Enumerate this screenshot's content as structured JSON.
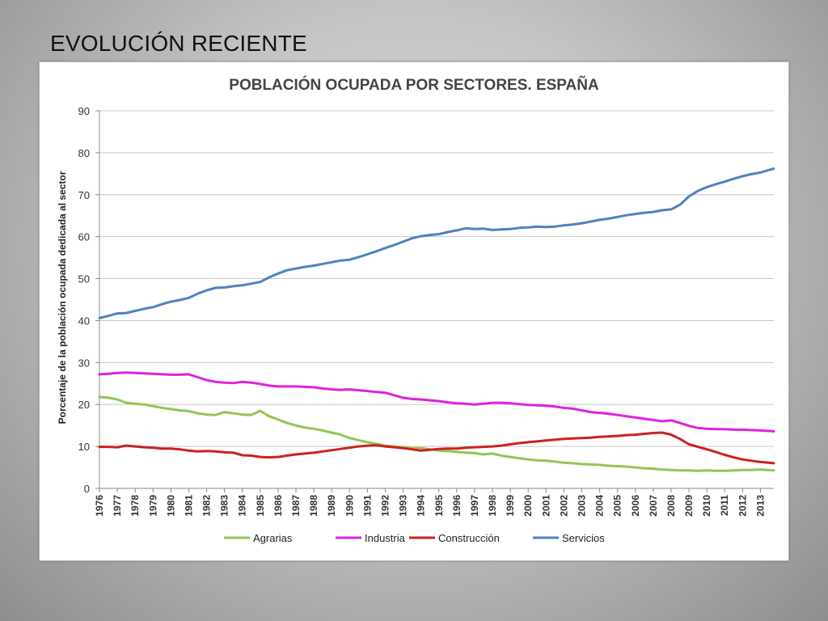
{
  "slide": {
    "title": "EVOLUCIÓN RECIENTE"
  },
  "chart_data": {
    "type": "line",
    "title": "POBLACIÓN OCUPADA POR SECTORES. ESPAÑA",
    "xlabel": "",
    "ylabel": "Porcentaje de la población ocupada dedicada al sector",
    "ylim": [
      0,
      90
    ],
    "yticks": [
      0,
      10,
      20,
      30,
      40,
      50,
      60,
      70,
      80,
      90
    ],
    "xlim": [
      1976,
      2013.75
    ],
    "xticks": [
      "1976",
      "1977",
      "1978",
      "1979",
      "1980",
      "1981",
      "1982",
      "1983",
      "1984",
      "1985",
      "1986",
      "1987",
      "1988",
      "1989",
      "1990",
      "1991",
      "1992",
      "1993",
      "1994",
      "1995",
      "1996",
      "1997",
      "1998",
      "1999",
      "2000",
      "2001",
      "2002",
      "2003",
      "2004",
      "2005",
      "2006",
      "2007",
      "2008",
      "2009",
      "2010",
      "2011",
      "2012",
      "2013"
    ],
    "grid": "horizontal",
    "legend": "bottom",
    "series": [
      {
        "name": "Agrarias",
        "color": "#8fc750",
        "points": [
          [
            1976,
            21.8
          ],
          [
            1976.5,
            21.6
          ],
          [
            1977,
            21.2
          ],
          [
            1977.5,
            20.4
          ],
          [
            1978,
            20.2
          ],
          [
            1978.5,
            20.0
          ],
          [
            1979,
            19.6
          ],
          [
            1979.5,
            19.2
          ],
          [
            1980,
            18.9
          ],
          [
            1980.5,
            18.6
          ],
          [
            1981,
            18.4
          ],
          [
            1981.5,
            17.9
          ],
          [
            1982,
            17.6
          ],
          [
            1982.5,
            17.5
          ],
          [
            1983,
            18.2
          ],
          [
            1983.5,
            17.9
          ],
          [
            1984,
            17.6
          ],
          [
            1984.5,
            17.5
          ],
          [
            1985,
            18.5
          ],
          [
            1985.5,
            17.2
          ],
          [
            1986,
            16.4
          ],
          [
            1986.5,
            15.6
          ],
          [
            1987,
            15.0
          ],
          [
            1987.5,
            14.5
          ],
          [
            1988,
            14.2
          ],
          [
            1988.5,
            13.8
          ],
          [
            1989,
            13.3
          ],
          [
            1989.5,
            12.8
          ],
          [
            1990,
            12.0
          ],
          [
            1990.5,
            11.5
          ],
          [
            1991,
            11.0
          ],
          [
            1991.5,
            10.6
          ],
          [
            1992,
            10.2
          ],
          [
            1992.5,
            10.0
          ],
          [
            1993,
            9.8
          ],
          [
            1993.5,
            9.6
          ],
          [
            1994,
            9.6
          ],
          [
            1994.5,
            9.3
          ],
          [
            1995,
            9.0
          ],
          [
            1995.5,
            8.9
          ],
          [
            1996,
            8.7
          ],
          [
            1996.5,
            8.5
          ],
          [
            1997,
            8.4
          ],
          [
            1997.5,
            8.1
          ],
          [
            1998,
            8.3
          ],
          [
            1998.5,
            7.8
          ],
          [
            1999,
            7.5
          ],
          [
            1999.5,
            7.2
          ],
          [
            2000,
            6.9
          ],
          [
            2000.5,
            6.7
          ],
          [
            2001,
            6.6
          ],
          [
            2001.5,
            6.4
          ],
          [
            2002,
            6.1
          ],
          [
            2002.5,
            6.0
          ],
          [
            2003,
            5.8
          ],
          [
            2003.5,
            5.7
          ],
          [
            2004,
            5.6
          ],
          [
            2004.5,
            5.4
          ],
          [
            2005,
            5.3
          ],
          [
            2005.5,
            5.2
          ],
          [
            2006,
            5.0
          ],
          [
            2006.5,
            4.8
          ],
          [
            2007,
            4.7
          ],
          [
            2007.5,
            4.5
          ],
          [
            2008,
            4.4
          ],
          [
            2008.5,
            4.3
          ],
          [
            2009,
            4.3
          ],
          [
            2009.5,
            4.2
          ],
          [
            2010,
            4.3
          ],
          [
            2010.5,
            4.2
          ],
          [
            2011,
            4.2
          ],
          [
            2011.5,
            4.3
          ],
          [
            2012,
            4.4
          ],
          [
            2012.5,
            4.4
          ],
          [
            2013,
            4.5
          ],
          [
            2013.75,
            4.3
          ]
        ]
      },
      {
        "name": "Industria",
        "color": "#e020e0",
        "points": [
          [
            1976,
            27.2
          ],
          [
            1976.5,
            27.3
          ],
          [
            1977,
            27.5
          ],
          [
            1977.5,
            27.6
          ],
          [
            1978,
            27.5
          ],
          [
            1978.5,
            27.4
          ],
          [
            1979,
            27.3
          ],
          [
            1979.5,
            27.2
          ],
          [
            1980,
            27.1
          ],
          [
            1980.5,
            27.1
          ],
          [
            1981,
            27.2
          ],
          [
            1981.5,
            26.5
          ],
          [
            1982,
            25.8
          ],
          [
            1982.5,
            25.4
          ],
          [
            1983,
            25.2
          ],
          [
            1983.5,
            25.1
          ],
          [
            1984,
            25.4
          ],
          [
            1984.5,
            25.2
          ],
          [
            1985,
            24.9
          ],
          [
            1985.5,
            24.5
          ],
          [
            1986,
            24.3
          ],
          [
            1986.5,
            24.3
          ],
          [
            1987,
            24.3
          ],
          [
            1987.5,
            24.2
          ],
          [
            1988,
            24.1
          ],
          [
            1988.5,
            23.8
          ],
          [
            1989,
            23.6
          ],
          [
            1989.5,
            23.5
          ],
          [
            1990,
            23.6
          ],
          [
            1990.5,
            23.4
          ],
          [
            1991,
            23.2
          ],
          [
            1991.5,
            23.0
          ],
          [
            1992,
            22.8
          ],
          [
            1992.5,
            22.2
          ],
          [
            1993,
            21.6
          ],
          [
            1993.5,
            21.3
          ],
          [
            1994,
            21.2
          ],
          [
            1994.5,
            21.0
          ],
          [
            1995,
            20.8
          ],
          [
            1995.5,
            20.5
          ],
          [
            1996,
            20.3
          ],
          [
            1996.5,
            20.2
          ],
          [
            1997,
            20.0
          ],
          [
            1997.5,
            20.2
          ],
          [
            1998,
            20.4
          ],
          [
            1998.5,
            20.4
          ],
          [
            1999,
            20.3
          ],
          [
            1999.5,
            20.1
          ],
          [
            2000,
            19.9
          ],
          [
            2000.5,
            19.8
          ],
          [
            2001,
            19.7
          ],
          [
            2001.5,
            19.5
          ],
          [
            2002,
            19.2
          ],
          [
            2002.5,
            19.0
          ],
          [
            2003,
            18.6
          ],
          [
            2003.5,
            18.2
          ],
          [
            2004,
            18.0
          ],
          [
            2004.5,
            17.8
          ],
          [
            2005,
            17.5
          ],
          [
            2005.5,
            17.2
          ],
          [
            2006,
            16.9
          ],
          [
            2006.5,
            16.6
          ],
          [
            2007,
            16.3
          ],
          [
            2007.5,
            16.0
          ],
          [
            2008,
            16.2
          ],
          [
            2008.5,
            15.6
          ],
          [
            2009,
            14.9
          ],
          [
            2009.5,
            14.4
          ],
          [
            2010,
            14.2
          ],
          [
            2010.5,
            14.1
          ],
          [
            2011,
            14.1
          ],
          [
            2011.5,
            14.0
          ],
          [
            2012,
            14.0
          ],
          [
            2012.5,
            13.9
          ],
          [
            2013,
            13.8
          ],
          [
            2013.75,
            13.6
          ]
        ]
      },
      {
        "name": "Construcción",
        "color": "#cc2020",
        "points": [
          [
            1976,
            9.9
          ],
          [
            1976.5,
            9.9
          ],
          [
            1977,
            9.8
          ],
          [
            1977.5,
            10.2
          ],
          [
            1978,
            10.0
          ],
          [
            1978.5,
            9.8
          ],
          [
            1979,
            9.7
          ],
          [
            1979.5,
            9.5
          ],
          [
            1980,
            9.5
          ],
          [
            1980.5,
            9.3
          ],
          [
            1981,
            9.0
          ],
          [
            1981.5,
            8.8
          ],
          [
            1982,
            8.9
          ],
          [
            1982.5,
            8.8
          ],
          [
            1983,
            8.6
          ],
          [
            1983.5,
            8.5
          ],
          [
            1984,
            7.9
          ],
          [
            1984.5,
            7.8
          ],
          [
            1985,
            7.5
          ],
          [
            1985.5,
            7.4
          ],
          [
            1986,
            7.5
          ],
          [
            1986.5,
            7.8
          ],
          [
            1987,
            8.1
          ],
          [
            1987.5,
            8.3
          ],
          [
            1988,
            8.5
          ],
          [
            1988.5,
            8.8
          ],
          [
            1989,
            9.1
          ],
          [
            1989.5,
            9.4
          ],
          [
            1990,
            9.7
          ],
          [
            1990.5,
            10.0
          ],
          [
            1991,
            10.2
          ],
          [
            1991.5,
            10.3
          ],
          [
            1992,
            10.0
          ],
          [
            1992.5,
            9.8
          ],
          [
            1993,
            9.6
          ],
          [
            1993.5,
            9.3
          ],
          [
            1994,
            9.0
          ],
          [
            1994.5,
            9.2
          ],
          [
            1995,
            9.4
          ],
          [
            1995.5,
            9.5
          ],
          [
            1996,
            9.5
          ],
          [
            1996.5,
            9.7
          ],
          [
            1997,
            9.8
          ],
          [
            1997.5,
            9.9
          ],
          [
            1998,
            10.0
          ],
          [
            1998.5,
            10.2
          ],
          [
            1999,
            10.5
          ],
          [
            1999.5,
            10.8
          ],
          [
            2000,
            11.0
          ],
          [
            2000.5,
            11.2
          ],
          [
            2001,
            11.4
          ],
          [
            2001.5,
            11.6
          ],
          [
            2002,
            11.8
          ],
          [
            2002.5,
            11.9
          ],
          [
            2003,
            12.0
          ],
          [
            2003.5,
            12.1
          ],
          [
            2004,
            12.3
          ],
          [
            2004.5,
            12.4
          ],
          [
            2005,
            12.5
          ],
          [
            2005.5,
            12.7
          ],
          [
            2006,
            12.8
          ],
          [
            2006.5,
            13.0
          ],
          [
            2007,
            13.2
          ],
          [
            2007.5,
            13.3
          ],
          [
            2008,
            12.8
          ],
          [
            2008.5,
            11.8
          ],
          [
            2009,
            10.5
          ],
          [
            2009.5,
            9.9
          ],
          [
            2010,
            9.3
          ],
          [
            2010.5,
            8.7
          ],
          [
            2011,
            8.0
          ],
          [
            2011.5,
            7.4
          ],
          [
            2012,
            6.9
          ],
          [
            2012.5,
            6.6
          ],
          [
            2013,
            6.3
          ],
          [
            2013.75,
            6.0
          ]
        ]
      },
      {
        "name": "Servicios",
        "color": "#4f81bd",
        "points": [
          [
            1976,
            40.6
          ],
          [
            1976.5,
            41.1
          ],
          [
            1977,
            41.7
          ],
          [
            1977.5,
            41.8
          ],
          [
            1978,
            42.3
          ],
          [
            1978.5,
            42.8
          ],
          [
            1979,
            43.2
          ],
          [
            1979.5,
            43.9
          ],
          [
            1980,
            44.5
          ],
          [
            1980.5,
            44.9
          ],
          [
            1981,
            45.4
          ],
          [
            1981.5,
            46.4
          ],
          [
            1982,
            47.2
          ],
          [
            1982.5,
            47.8
          ],
          [
            1983,
            47.9
          ],
          [
            1983.5,
            48.2
          ],
          [
            1984,
            48.4
          ],
          [
            1984.5,
            48.8
          ],
          [
            1985,
            49.2
          ],
          [
            1985.5,
            50.3
          ],
          [
            1986,
            51.2
          ],
          [
            1986.5,
            52.0
          ],
          [
            1987,
            52.4
          ],
          [
            1987.5,
            52.8
          ],
          [
            1988,
            53.1
          ],
          [
            1988.5,
            53.5
          ],
          [
            1989,
            53.9
          ],
          [
            1989.5,
            54.3
          ],
          [
            1990,
            54.5
          ],
          [
            1990.5,
            55.1
          ],
          [
            1991,
            55.8
          ],
          [
            1991.5,
            56.5
          ],
          [
            1992,
            57.3
          ],
          [
            1992.5,
            58.0
          ],
          [
            1993,
            58.8
          ],
          [
            1993.5,
            59.6
          ],
          [
            1994,
            60.1
          ],
          [
            1994.5,
            60.4
          ],
          [
            1995,
            60.6
          ],
          [
            1995.5,
            61.1
          ],
          [
            1996,
            61.5
          ],
          [
            1996.5,
            62.0
          ],
          [
            1997,
            61.8
          ],
          [
            1997.5,
            61.9
          ],
          [
            1998,
            61.6
          ],
          [
            1998.5,
            61.7
          ],
          [
            1999,
            61.8
          ],
          [
            1999.5,
            62.1
          ],
          [
            2000,
            62.2
          ],
          [
            2000.5,
            62.4
          ],
          [
            2001,
            62.3
          ],
          [
            2001.5,
            62.4
          ],
          [
            2002,
            62.7
          ],
          [
            2002.5,
            62.9
          ],
          [
            2003,
            63.2
          ],
          [
            2003.5,
            63.6
          ],
          [
            2004,
            64.0
          ],
          [
            2004.5,
            64.3
          ],
          [
            2005,
            64.7
          ],
          [
            2005.5,
            65.1
          ],
          [
            2006,
            65.4
          ],
          [
            2006.5,
            65.7
          ],
          [
            2007,
            65.9
          ],
          [
            2007.5,
            66.3
          ],
          [
            2008,
            66.5
          ],
          [
            2008.5,
            67.6
          ],
          [
            2009,
            69.6
          ],
          [
            2009.5,
            70.9
          ],
          [
            2010,
            71.8
          ],
          [
            2010.5,
            72.5
          ],
          [
            2011,
            73.1
          ],
          [
            2011.5,
            73.8
          ],
          [
            2012,
            74.4
          ],
          [
            2012.5,
            74.9
          ],
          [
            2013,
            75.3
          ],
          [
            2013.75,
            76.2
          ]
        ]
      }
    ]
  }
}
